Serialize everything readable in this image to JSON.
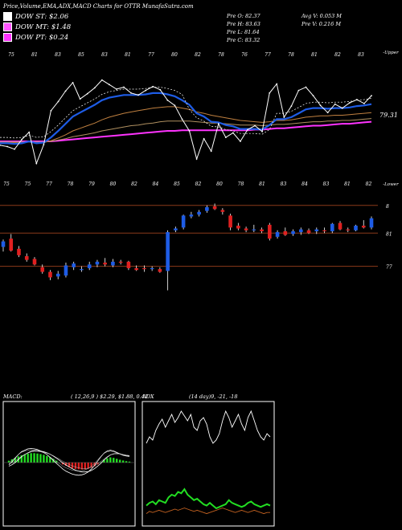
{
  "header": {
    "title": "Price,Volume,EMA,ADX,MACD Charts for OTTR MunafaSutra.com"
  },
  "legend": [
    {
      "label": "DOW ST: $2.06",
      "color": "#ffffff"
    },
    {
      "label": "DOW MT: $1.48",
      "color": "#ff55ff"
    },
    {
      "label": "DOW PT: $0.24",
      "color": "#ff33ff"
    }
  ],
  "stats": {
    "pre_o": "Pre   O: 82.37",
    "pre_h": "Pre   H: 83.63",
    "pre_l": "Pre   L: 81.64",
    "pre_c": "Pre   C: 83.32",
    "avg_v": "Avg V: 0.053  M",
    "pre_v": "Pre   V: 0.216  M"
  },
  "price_panel": {
    "last_price_label": "79.31",
    "right_top_label": "-Upper",
    "right_bottom_label": "-Lower",
    "top_labels": [
      "75",
      "81",
      "83",
      "85",
      "83",
      "81",
      "77",
      "80",
      "82",
      "78",
      "76",
      "77",
      "78",
      "81",
      "82",
      "83"
    ],
    "bottom_labels": [
      "75",
      "75",
      "77",
      "78",
      "79",
      "80",
      "82",
      "84",
      "85",
      "82",
      "80",
      "78",
      "81",
      "83",
      "84",
      "83",
      "81",
      "82"
    ],
    "colors": {
      "price": "#ffffff",
      "ema_fast": "#1e5ce6",
      "ema_white": "#ffffff",
      "ema_orange": "#c08040",
      "ema_gold": "#b09060",
      "ema_magenta": "#ff33ff"
    }
  },
  "candle_panel": {
    "level_labels": [
      "8",
      "81",
      "77"
    ],
    "up_color": "#1e5ce6",
    "down_color": "#e02020",
    "line_color": "#8b3a1a"
  },
  "chart_data": [
    {
      "type": "line",
      "title": "",
      "series": [
        {
          "values": [
            75.2,
            75.0,
            74.6,
            76.1,
            77.2,
            72.4,
            75.3,
            80.5,
            81.9,
            83.5,
            84.8,
            82.3,
            83.1,
            84.0,
            85.2,
            84.5,
            83.8,
            84.1,
            83.2,
            82.9,
            83.6,
            84.2,
            83.7,
            82.1,
            81.3,
            79.2,
            77.4,
            73.1,
            76.2,
            74.3,
            78.5,
            76.4,
            77.1,
            75.8,
            77.6,
            78.2,
            77.3,
            83.2,
            84.6,
            79.5,
            81.2,
            83.6,
            84.1,
            82.8,
            81.3,
            80.2,
            81.5,
            80.9,
            81.7,
            82.2,
            81.6,
            82.8
          ]
        },
        {
          "values": [
            75.5,
            75.5,
            75.4,
            75.5,
            75.8,
            75.5,
            75.6,
            76.4,
            77.4,
            78.5,
            79.6,
            80.2,
            80.8,
            81.4,
            82.1,
            82.5,
            82.7,
            82.9,
            82.9,
            82.9,
            83.0,
            83.2,
            83.2,
            83.0,
            82.7,
            82.1,
            81.4,
            80.1,
            79.6,
            78.8,
            78.7,
            78.3,
            78.1,
            77.7,
            77.7,
            77.7,
            77.6,
            78.3,
            79.2,
            79.2,
            79.5,
            80.1,
            80.7,
            80.9,
            80.9,
            80.8,
            80.9,
            80.9,
            81.0,
            81.2,
            81.3,
            81.5
          ]
        },
        {
          "values": [
            75.6,
            75.6,
            75.6,
            75.6,
            75.7,
            75.6,
            75.6,
            75.9,
            76.3,
            76.8,
            77.4,
            77.8,
            78.2,
            78.6,
            79.1,
            79.5,
            79.8,
            80.1,
            80.3,
            80.5,
            80.7,
            80.9,
            81.0,
            81.1,
            81.1,
            80.9,
            80.7,
            80.3,
            80.1,
            79.8,
            79.6,
            79.4,
            79.2,
            79.0,
            78.9,
            78.8,
            78.7,
            78.8,
            79.0,
            79.0,
            79.1,
            79.3,
            79.5,
            79.6,
            79.7,
            79.7,
            79.8,
            79.8,
            79.9,
            80.0,
            80.1,
            80.2
          ]
        },
        {
          "values": [
            75.7,
            75.7,
            75.7,
            75.7,
            75.7,
            75.7,
            75.7,
            75.8,
            76.0,
            76.2,
            76.5,
            76.7,
            76.9,
            77.1,
            77.4,
            77.6,
            77.8,
            78.0,
            78.2,
            78.3,
            78.5,
            78.6,
            78.8,
            78.9,
            78.9,
            78.9,
            78.9,
            78.8,
            78.7,
            78.6,
            78.6,
            78.5,
            78.4,
            78.3,
            78.3,
            78.3,
            78.2,
            78.3,
            78.4,
            78.4,
            78.5,
            78.6,
            78.7,
            78.8,
            78.8,
            78.9,
            78.9,
            79.0,
            79.0,
            79.1,
            79.2,
            79.3
          ]
        },
        {
          "values": [
            75.8,
            75.8,
            75.8,
            75.8,
            75.8,
            75.8,
            75.8,
            75.8,
            75.9,
            76.0,
            76.1,
            76.2,
            76.3,
            76.4,
            76.5,
            76.6,
            76.7,
            76.8,
            76.9,
            77.0,
            77.1,
            77.2,
            77.3,
            77.4,
            77.4,
            77.5,
            77.5,
            77.5,
            77.5,
            77.5,
            77.5,
            77.5,
            77.5,
            77.5,
            77.5,
            77.6,
            77.6,
            77.7,
            77.8,
            77.8,
            77.9,
            78.0,
            78.1,
            78.2,
            78.2,
            78.3,
            78.4,
            78.5,
            78.5,
            78.6,
            78.7,
            78.8
          ]
        }
      ]
    },
    {
      "type": "bar",
      "title": "",
      "candles": [
        {
          "o": 79.5,
          "h": 80.3,
          "l": 79.0,
          "c": 80.1
        },
        {
          "o": 80.4,
          "h": 80.9,
          "l": 79.0,
          "c": 79.1
        },
        {
          "o": 79.3,
          "h": 79.6,
          "l": 78.4,
          "c": 78.6
        },
        {
          "o": 78.5,
          "h": 78.8,
          "l": 77.9,
          "c": 78.1
        },
        {
          "o": 78.2,
          "h": 78.4,
          "l": 77.5,
          "c": 77.6
        },
        {
          "o": 77.3,
          "h": 77.6,
          "l": 76.6,
          "c": 76.8
        },
        {
          "o": 76.8,
          "h": 77.0,
          "l": 75.9,
          "c": 76.2
        },
        {
          "o": 76.3,
          "h": 76.9,
          "l": 76.0,
          "c": 76.6
        },
        {
          "o": 76.4,
          "h": 77.8,
          "l": 76.2,
          "c": 77.5
        },
        {
          "o": 77.3,
          "h": 77.9,
          "l": 77.0,
          "c": 77.7
        },
        {
          "o": 77.0,
          "h": 77.4,
          "l": 76.8,
          "c": 77.1
        },
        {
          "o": 77.2,
          "h": 77.9,
          "l": 77.0,
          "c": 77.6
        },
        {
          "o": 77.6,
          "h": 78.1,
          "l": 77.3,
          "c": 77.9
        },
        {
          "o": 77.8,
          "h": 78.3,
          "l": 77.4,
          "c": 77.6
        },
        {
          "o": 77.5,
          "h": 78.2,
          "l": 77.3,
          "c": 77.9
        },
        {
          "o": 77.9,
          "h": 78.1,
          "l": 77.6,
          "c": 77.8
        },
        {
          "o": 77.9,
          "h": 78.0,
          "l": 77.0,
          "c": 77.2
        },
        {
          "o": 77.2,
          "h": 77.5,
          "l": 76.9,
          "c": 77.0
        },
        {
          "o": 77.2,
          "h": 77.5,
          "l": 76.8,
          "c": 77.1
        },
        {
          "o": 77.1,
          "h": 77.4,
          "l": 76.9,
          "c": 77.2
        },
        {
          "o": 77.1,
          "h": 77.3,
          "l": 76.7,
          "c": 76.8
        },
        {
          "o": 76.9,
          "h": 81.3,
          "l": 74.8,
          "c": 81.1
        },
        {
          "o": 81.3,
          "h": 81.7,
          "l": 81.1,
          "c": 81.5
        },
        {
          "o": 81.6,
          "h": 83.0,
          "l": 81.4,
          "c": 82.9
        },
        {
          "o": 82.8,
          "h": 83.3,
          "l": 82.6,
          "c": 83.0
        },
        {
          "o": 83.0,
          "h": 83.5,
          "l": 82.8,
          "c": 83.3
        },
        {
          "o": 83.4,
          "h": 84.0,
          "l": 83.2,
          "c": 83.8
        },
        {
          "o": 83.9,
          "h": 84.2,
          "l": 83.5,
          "c": 83.6
        },
        {
          "o": 83.5,
          "h": 83.7,
          "l": 83.0,
          "c": 83.3
        },
        {
          "o": 82.9,
          "h": 83.1,
          "l": 81.3,
          "c": 81.6
        },
        {
          "o": 81.8,
          "h": 82.1,
          "l": 81.3,
          "c": 81.5
        },
        {
          "o": 81.5,
          "h": 81.7,
          "l": 81.1,
          "c": 81.3
        },
        {
          "o": 81.3,
          "h": 81.9,
          "l": 81.1,
          "c": 81.4
        },
        {
          "o": 81.4,
          "h": 81.6,
          "l": 81.0,
          "c": 81.2
        },
        {
          "o": 81.9,
          "h": 82.1,
          "l": 80.2,
          "c": 80.4
        },
        {
          "o": 80.6,
          "h": 81.3,
          "l": 80.4,
          "c": 81.1
        },
        {
          "o": 81.2,
          "h": 81.6,
          "l": 80.7,
          "c": 80.8
        },
        {
          "o": 80.9,
          "h": 81.4,
          "l": 80.7,
          "c": 81.2
        },
        {
          "o": 81.1,
          "h": 81.6,
          "l": 80.8,
          "c": 81.4
        },
        {
          "o": 81.3,
          "h": 81.5,
          "l": 80.9,
          "c": 81.0
        },
        {
          "o": 81.2,
          "h": 81.6,
          "l": 80.9,
          "c": 81.4
        },
        {
          "o": 81.3,
          "h": 81.6,
          "l": 81.0,
          "c": 81.2
        },
        {
          "o": 81.2,
          "h": 82.1,
          "l": 81.0,
          "c": 82.0
        },
        {
          "o": 82.1,
          "h": 82.3,
          "l": 81.3,
          "c": 81.4
        },
        {
          "o": 81.4,
          "h": 81.6,
          "l": 81.1,
          "c": 81.3
        },
        {
          "o": 81.3,
          "h": 81.9,
          "l": 81.2,
          "c": 81.8
        },
        {
          "o": 81.8,
          "h": 82.4,
          "l": 81.5,
          "c": 81.6
        },
        {
          "o": 81.6,
          "h": 82.8,
          "l": 81.4,
          "c": 82.6
        }
      ]
    },
    {
      "type": "bar",
      "title": "MACD",
      "params": "( 12,26,9 ) $2.29, $1.88, 0.41",
      "histogram": [
        0.2,
        0.35,
        0.5,
        0.65,
        0.78,
        0.88,
        0.95,
        1.0,
        1.0,
        0.96,
        0.9,
        0.82,
        0.7,
        0.55,
        0.4,
        0.2,
        0.0,
        -0.2,
        -0.35,
        -0.5,
        -0.6,
        -0.68,
        -0.72,
        -0.74,
        -0.72,
        -0.66,
        -0.55,
        -0.4,
        -0.2,
        0.05,
        0.3,
        0.45,
        0.55,
        0.5,
        0.4,
        0.3,
        0.22,
        0.15,
        0.1
      ],
      "macd_line": [
        -0.3,
        0.1,
        0.6,
        1.1,
        1.5,
        1.7,
        1.9,
        1.95,
        1.9,
        1.8,
        1.6,
        1.4,
        1.1,
        0.7,
        0.3,
        -0.1,
        -0.5,
        -0.9,
        -1.2,
        -1.4,
        -1.6,
        -1.7,
        -1.75,
        -1.7,
        -1.55,
        -1.3,
        -0.9,
        -0.4,
        0.2,
        0.8,
        1.3,
        1.6,
        1.7,
        1.6,
        1.4,
        1.2,
        1.0,
        0.9,
        0.85
      ],
      "signal_line": [
        -0.5,
        -0.3,
        0.0,
        0.4,
        0.8,
        1.1,
        1.35,
        1.55,
        1.65,
        1.65,
        1.6,
        1.5,
        1.35,
        1.15,
        0.9,
        0.6,
        0.3,
        -0.05,
        -0.35,
        -0.6,
        -0.85,
        -1.05,
        -1.2,
        -1.3,
        -1.3,
        -1.25,
        -1.1,
        -0.85,
        -0.5,
        -0.1,
        0.35,
        0.75,
        1.05,
        1.2,
        1.25,
        1.2,
        1.1,
        1.0,
        0.95
      ]
    },
    {
      "type": "line",
      "title": "ADX",
      "params": "(14 day)9, -21, -18",
      "series": [
        {
          "values": [
            20,
            24,
            22,
            28,
            32,
            35,
            30,
            34,
            38,
            33,
            36,
            40,
            37,
            34,
            38,
            30,
            28,
            34,
            36,
            32,
            24,
            20,
            22,
            26,
            34,
            40,
            36,
            30,
            34,
            38,
            32,
            28,
            36,
            40,
            34,
            28,
            24,
            22,
            26,
            24
          ]
        },
        {
          "values": [
            12,
            14,
            15,
            13,
            16,
            15,
            14,
            18,
            20,
            19,
            22,
            21,
            24,
            20,
            18,
            16,
            17,
            15,
            13,
            12,
            14,
            12,
            10,
            11,
            12,
            13,
            16,
            14,
            13,
            12,
            11,
            12,
            14,
            15,
            13,
            12,
            11,
            12,
            13,
            12
          ]
        },
        {
          "values": [
            6,
            8,
            7,
            8,
            9,
            8,
            7,
            8,
            9,
            10,
            9,
            10,
            11,
            10,
            9,
            8,
            9,
            8,
            7,
            6,
            7,
            8,
            9,
            10,
            11,
            10,
            9,
            8,
            7,
            8,
            9,
            8,
            7,
            8,
            9,
            8,
            7,
            6,
            7,
            7
          ]
        }
      ]
    }
  ]
}
